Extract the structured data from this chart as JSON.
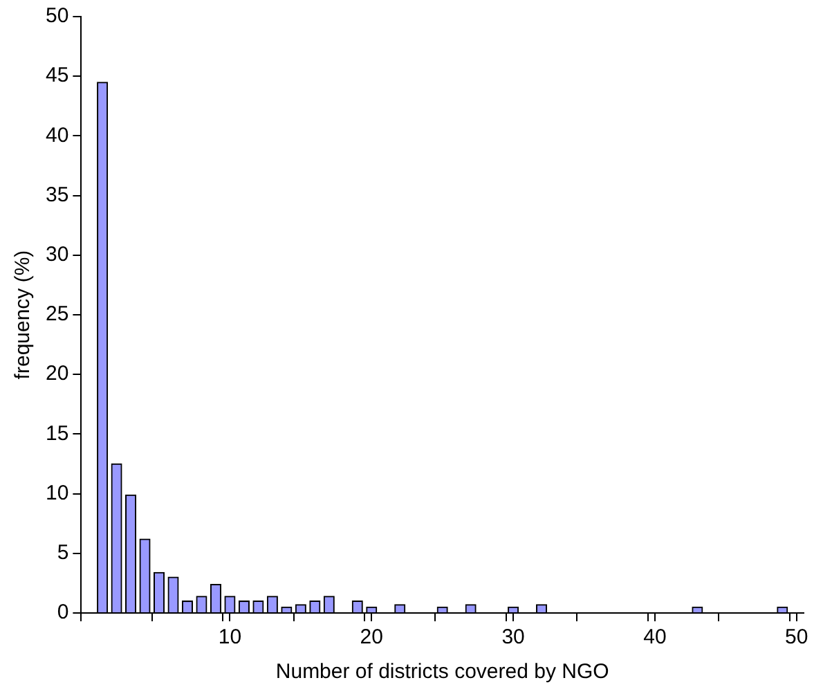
{
  "chart_data": {
    "type": "bar",
    "xlabel": "Number of districts covered by NGO",
    "ylabel": "frequency (%)",
    "x": [
      1,
      2,
      3,
      4,
      5,
      6,
      7,
      8,
      9,
      10,
      11,
      12,
      13,
      14,
      15,
      16,
      17,
      19,
      20,
      22,
      25,
      27,
      30,
      32,
      43,
      49
    ],
    "values": [
      44.5,
      12.5,
      9.9,
      6.2,
      3.4,
      3.0,
      1.0,
      1.4,
      2.4,
      1.4,
      1.0,
      1.0,
      1.4,
      0.5,
      0.7,
      1.0,
      1.4,
      1.0,
      0.5,
      0.7,
      0.5,
      0.7,
      0.5,
      0.7,
      0.5,
      0.5
    ],
    "color": "#9999ff",
    "xlim": [
      -0.5,
      50.5
    ],
    "xticks": [
      {
        "value": -0.5,
        "label": null
      },
      {
        "value": 4.5,
        "label": null
      },
      {
        "value": 9.5,
        "label": null
      },
      10,
      {
        "value": 14.5,
        "label": null
      },
      {
        "value": 19.5,
        "label": null
      },
      20,
      {
        "value": 24.5,
        "label": null
      },
      {
        "value": 29.5,
        "label": null
      },
      30,
      {
        "value": 34.5,
        "label": null
      },
      {
        "value": 39.5,
        "label": null
      },
      40,
      {
        "value": 44.5,
        "label": null
      },
      {
        "value": 49.5,
        "label": null
      },
      50
    ],
    "ylim": [
      0,
      50
    ],
    "yticks": [
      0,
      5,
      10,
      15,
      20,
      25,
      30,
      35,
      40,
      45,
      50
    ],
    "grid": false,
    "legend": false
  }
}
